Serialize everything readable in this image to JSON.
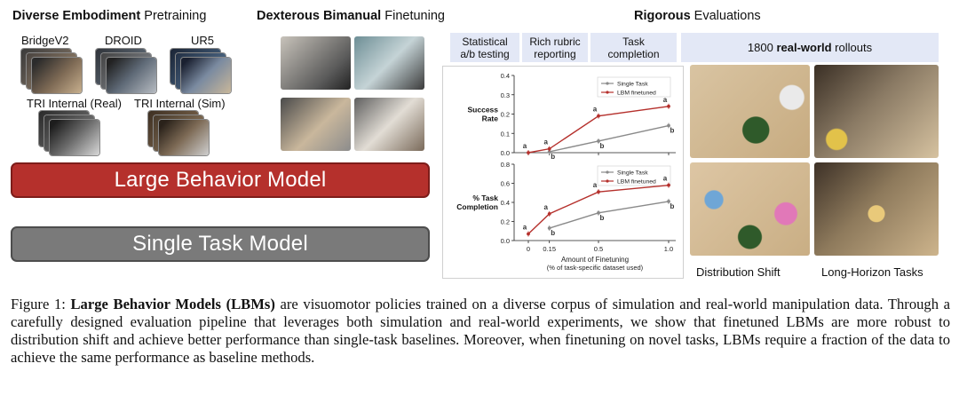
{
  "headers": {
    "pretraining_bold": "Diverse Embodiment",
    "pretraining_rest": " Pretraining",
    "finetuning_bold": "Dexterous Bimanual",
    "finetuning_rest": " Finetuning",
    "evaluations_bold": "Rigorous",
    "evaluations_rest": " Evaluations"
  },
  "datasets": {
    "bridge": "BridgeV2",
    "droid": "DROID",
    "ur5": "UR5",
    "tri_real": "TRI Internal (Real)",
    "tri_sim": "TRI Internal (Sim)"
  },
  "models": {
    "large": "Large Behavior Model",
    "single": "Single Task Model"
  },
  "eval_columns": {
    "ab_line1": "Statistical",
    "ab_line2": "a/b testing",
    "rubric_line1": "Rich rubric",
    "rubric_line2": "reporting",
    "task_line1": "Task",
    "task_line2": "completion",
    "rollouts_prefix": "1800 ",
    "rollouts_bold": "real-world",
    "rollouts_suffix": " rollouts"
  },
  "photo_captions": {
    "shift": "Distribution Shift",
    "horizon": "Long-Horizon Tasks"
  },
  "chart_data": [
    {
      "type": "line",
      "ylabel": "Success Rate",
      "x": [
        0,
        0.15,
        0.5,
        1.0
      ],
      "ylim": [
        0,
        0.4
      ],
      "yticks": [
        0.0,
        0.1,
        0.2,
        0.3,
        0.4
      ],
      "ytick_labels": [
        "0.0",
        "0.1",
        "0.2",
        "0.3",
        "0.4"
      ],
      "legend_position": "top-right",
      "series": [
        {
          "name": "Single Task",
          "color": "#8a8a8a",
          "x": [
            0.15,
            0.5,
            1.0
          ],
          "values": [
            0.005,
            0.06,
            0.14
          ],
          "letters": [
            "b",
            "b",
            "b"
          ]
        },
        {
          "name": "LBM finetuned",
          "color": "#b5302c",
          "x": [
            0,
            0.15,
            0.5,
            1.0
          ],
          "values": [
            0.0,
            0.02,
            0.19,
            0.24
          ],
          "letters": [
            "a",
            "a",
            "a",
            "a"
          ]
        }
      ]
    },
    {
      "type": "line",
      "ylabel": "% Task Completion",
      "x": [
        0,
        0.15,
        0.5,
        1.0
      ],
      "xlabel_line1": "Amount of Finetuning",
      "xlabel_line2": "(% of task-specific dataset used)",
      "xtick_labels": [
        "0",
        "0.15",
        "0.5",
        "1.0"
      ],
      "ylim": [
        0,
        0.8
      ],
      "yticks": [
        0.0,
        0.2,
        0.4,
        0.6,
        0.8
      ],
      "ytick_labels": [
        "0.0",
        "0.2",
        "0.4",
        "0.6",
        "0.8"
      ],
      "legend_position": "top-right",
      "series": [
        {
          "name": "Single Task",
          "color": "#8a8a8a",
          "x": [
            0.15,
            0.5,
            1.0
          ],
          "values": [
            0.13,
            0.29,
            0.41
          ],
          "letters": [
            "b",
            "b",
            "b"
          ]
        },
        {
          "name": "LBM finetuned",
          "color": "#b5302c",
          "x": [
            0,
            0.15,
            0.5,
            1.0
          ],
          "values": [
            0.07,
            0.28,
            0.51,
            0.58
          ],
          "letters": [
            "a",
            "a",
            "a",
            "a"
          ]
        }
      ]
    }
  ],
  "caption": {
    "prefix": "Figure 1: ",
    "bold": "Large Behavior Models (LBMs)",
    "body": " are visuomotor policies trained on a diverse corpus of simulation and real-world manipulation data. Through a carefully designed evaluation pipeline that leverages both simulation and real-world experiments, we show that finetuned LBMs are more robust to distribution shift and achieve better performance than single-task baselines. Moreover, when finetuning on novel tasks, LBMs require a fraction of the data to achieve the same performance as baseline methods."
  },
  "colors": {
    "lbm_red": "#b5302c",
    "single_gray": "#7a7a7a",
    "eval_header_bg": "#e3e8f6"
  }
}
